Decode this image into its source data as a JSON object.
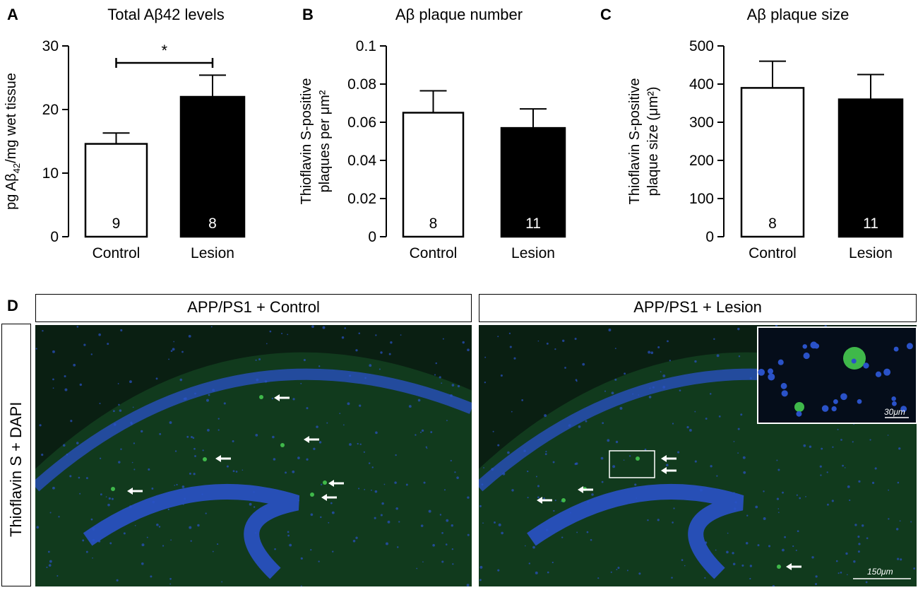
{
  "panels": {
    "a": {
      "letter": "A",
      "title": "Total Aβ42 levels"
    },
    "b": {
      "letter": "B",
      "title": "Aβ plaque number"
    },
    "c": {
      "letter": "C",
      "title": "Aβ plaque size"
    },
    "d": {
      "letter": "D"
    }
  },
  "chart_data": [
    {
      "type": "bar",
      "title": "Total Aβ42 levels",
      "ylabel_parts": [
        "pg Aβ",
        "42",
        "/mg wet tissue"
      ],
      "xlabel": "",
      "categories": [
        "Control",
        "Lesion"
      ],
      "values": [
        14.6,
        22.0
      ],
      "errors": [
        1.7,
        3.4
      ],
      "n_labels": [
        "9",
        "8"
      ],
      "colors": [
        "#ffffff",
        "#000000"
      ],
      "ylim": [
        0,
        30
      ],
      "yticks": [
        0,
        10,
        20,
        30
      ],
      "ytick_labels": [
        "0",
        "10",
        "20",
        "30"
      ],
      "significance": "*"
    },
    {
      "type": "bar",
      "title": "Aβ plaque number",
      "ylabel_lines": [
        "Thioflavin S-positive",
        "plaques per μm²"
      ],
      "xlabel": "",
      "categories": [
        "Control",
        "Lesion"
      ],
      "values": [
        0.065,
        0.057
      ],
      "errors": [
        0.0115,
        0.01
      ],
      "n_labels": [
        "8",
        "11"
      ],
      "colors": [
        "#ffffff",
        "#000000"
      ],
      "ylim": [
        0,
        0.1
      ],
      "yticks": [
        0,
        0.02,
        0.04,
        0.06,
        0.08,
        0.1
      ],
      "ytick_labels": [
        "0",
        "0.02",
        "0.04",
        "0.06",
        "0.08",
        "0.1"
      ]
    },
    {
      "type": "bar",
      "title": "Aβ plaque size",
      "ylabel_lines": [
        "Thioflavin S-positive",
        "plaque size (μm²)"
      ],
      "xlabel": "",
      "categories": [
        "Control",
        "Lesion"
      ],
      "values": [
        390,
        360
      ],
      "errors": [
        70,
        65
      ],
      "n_labels": [
        "8",
        "11"
      ],
      "colors": [
        "#ffffff",
        "#000000"
      ],
      "ylim": [
        0,
        500
      ],
      "yticks": [
        0,
        100,
        200,
        300,
        400,
        500
      ],
      "ytick_labels": [
        "0",
        "100",
        "200",
        "300",
        "400",
        "500"
      ]
    }
  ],
  "micrographs": {
    "side_label": "Thioflavin S + DAPI",
    "left": {
      "header": "APP/PS1 + Control"
    },
    "right": {
      "header": "APP/PS1 + Lesion",
      "scale_bar": "150μm",
      "inset_scale_bar": "30μm"
    },
    "colors": {
      "background": "#0a1f12",
      "dapi": "#2a52c8",
      "thioflavin": "#3fb84a"
    }
  }
}
